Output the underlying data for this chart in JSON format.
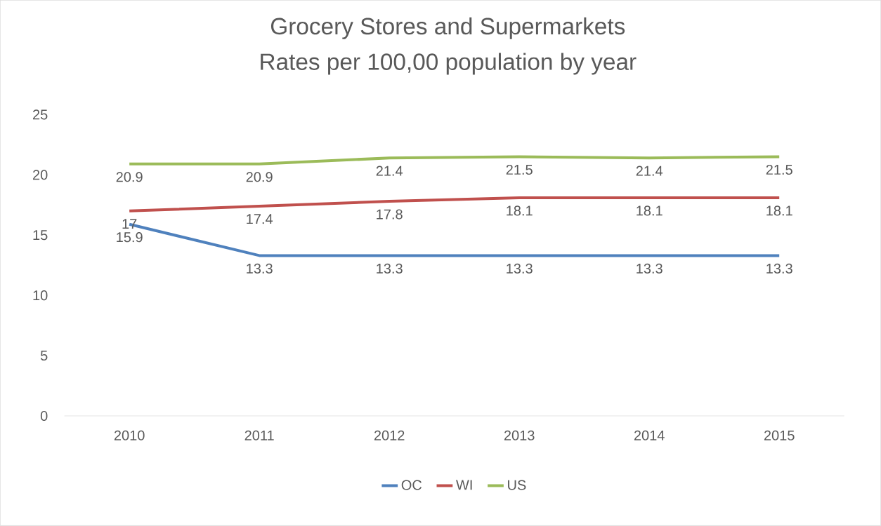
{
  "chart_data": {
    "type": "line",
    "title": "Grocery Stores and Supermarkets",
    "subtitle": "Rates per 100,00 population by year",
    "categories": [
      "2010",
      "2011",
      "2012",
      "2013",
      "2014",
      "2015"
    ],
    "series": [
      {
        "name": "OC",
        "color": "#4f81bd",
        "values": [
          15.9,
          13.3,
          13.3,
          13.3,
          13.3,
          13.3
        ]
      },
      {
        "name": "WI",
        "color": "#c0504d",
        "values": [
          17,
          17.4,
          17.8,
          18.1,
          18.1,
          18.1
        ]
      },
      {
        "name": "US",
        "color": "#9bbb59",
        "values": [
          20.9,
          20.9,
          21.4,
          21.5,
          21.4,
          21.5
        ]
      }
    ],
    "ylim": [
      0,
      25
    ],
    "yticks": [
      0,
      5,
      10,
      15,
      20,
      25
    ],
    "grid": false,
    "legend": "bottom",
    "marker": "none",
    "line_style": "solid",
    "data_labels": true
  }
}
